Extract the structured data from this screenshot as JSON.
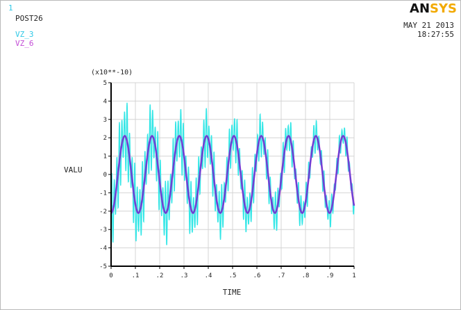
{
  "header": {
    "window_number": "1",
    "program": "POST26",
    "date": "MAY 21 2013",
    "time": "18:27:55",
    "logo_part_a": "AN",
    "logo_part_b": "SYS"
  },
  "colors": {
    "vz3": "#33e6e6",
    "vz6": "#a52bd0",
    "vz6_center": "#3a57d8",
    "axis": "#000000",
    "grid": "#d4d4d4",
    "logo_accent": "#f2a900"
  },
  "chart_data": {
    "type": "line",
    "title": "",
    "xlabel": "TIME",
    "ylabel": "VALU",
    "y_multiplier": "(x10**-10)",
    "xlim": [
      0,
      1
    ],
    "ylim": [
      -5,
      5
    ],
    "grid": true,
    "legend_placement": "top-left",
    "x_ticks": [
      "0",
      ".1",
      ".2",
      ".3",
      ".4",
      ".5",
      ".6",
      ".7",
      ".8",
      ".9",
      "1"
    ],
    "y_ticks": [
      "5",
      "4",
      "3",
      "2",
      "1",
      "0",
      "-1",
      "-2",
      "-3",
      "-4",
      "-5"
    ],
    "series": [
      {
        "name": "VZ_3",
        "amplitude": 2.1,
        "frequency": 8.9,
        "phase_deg": -90,
        "noise_amplitude_start": 2.2,
        "noise_amplitude_end": 0.7,
        "noise_frequency": 95
      },
      {
        "name": "VZ_6",
        "amplitude": 2.1,
        "frequency": 8.9,
        "phase_deg": -90
      }
    ]
  }
}
